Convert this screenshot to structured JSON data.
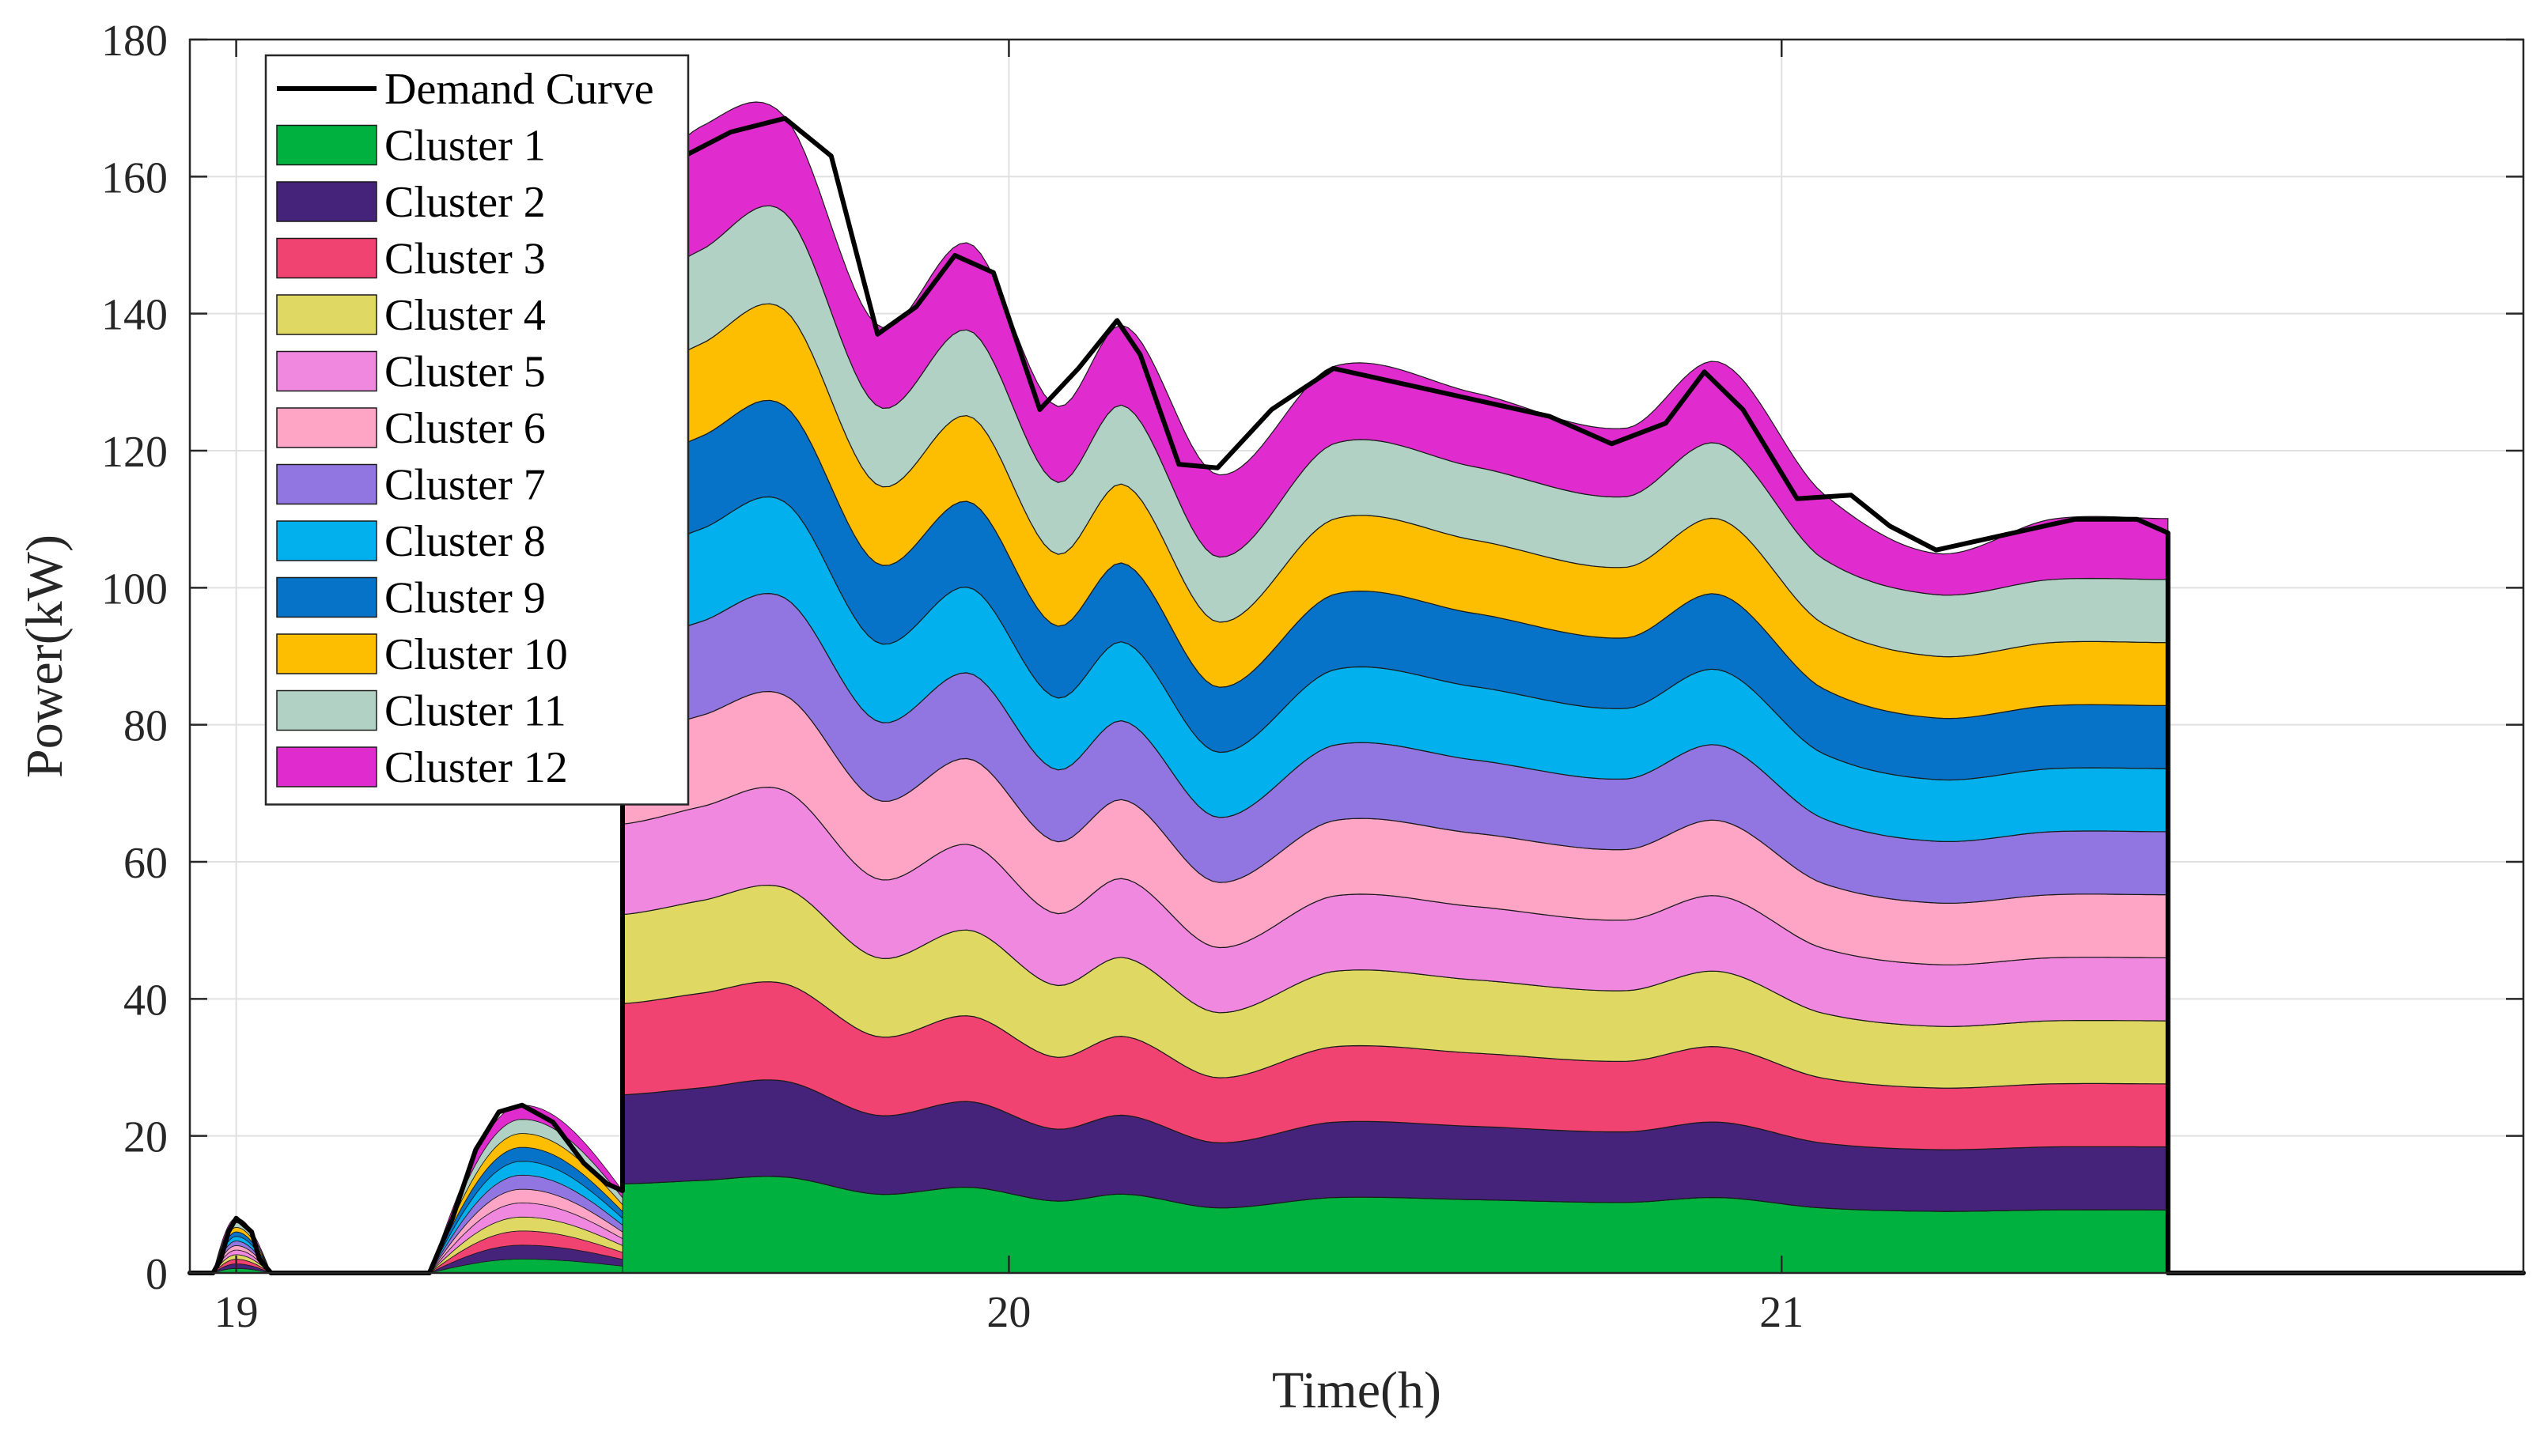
{
  "chart_data": {
    "type": "area",
    "stacked": true,
    "xlabel": "Time(h)",
    "ylabel": "Power(kW)",
    "xlim": [
      18.94,
      21.96
    ],
    "ylim": [
      0,
      180
    ],
    "xticks": [
      19,
      20,
      21
    ],
    "yticks": [
      0,
      20,
      40,
      60,
      80,
      100,
      120,
      140,
      160,
      180
    ],
    "grid": true,
    "legend_position": "top-left",
    "demand_curve": {
      "name": "Demand Curve",
      "color": "#000000",
      "points": [
        [
          18.94,
          0
        ],
        [
          18.97,
          0
        ],
        [
          18.98,
          2
        ],
        [
          18.99,
          6
        ],
        [
          19.0,
          8
        ],
        [
          19.02,
          6
        ],
        [
          19.03,
          2
        ],
        [
          19.045,
          0
        ],
        [
          19.25,
          0
        ],
        [
          19.28,
          8
        ],
        [
          19.31,
          18
        ],
        [
          19.34,
          23.5
        ],
        [
          19.37,
          24.5
        ],
        [
          19.41,
          22
        ],
        [
          19.45,
          16
        ],
        [
          19.48,
          13
        ],
        [
          19.5,
          12
        ],
        [
          19.5,
          157
        ],
        [
          19.52,
          158
        ],
        [
          19.58,
          163
        ],
        [
          19.64,
          166.5
        ],
        [
          19.71,
          168.5
        ],
        [
          19.77,
          163
        ],
        [
          19.83,
          137
        ],
        [
          19.88,
          141
        ],
        [
          19.93,
          148.5
        ],
        [
          19.98,
          146
        ],
        [
          20.04,
          126
        ],
        [
          20.09,
          132
        ],
        [
          20.14,
          139
        ],
        [
          20.17,
          134
        ],
        [
          20.22,
          118
        ],
        [
          20.27,
          117.5
        ],
        [
          20.34,
          126
        ],
        [
          20.42,
          132
        ],
        [
          20.5,
          130
        ],
        [
          20.6,
          127.5
        ],
        [
          20.7,
          125
        ],
        [
          20.78,
          121
        ],
        [
          20.85,
          124
        ],
        [
          20.9,
          131.5
        ],
        [
          20.95,
          126
        ],
        [
          21.02,
          113
        ],
        [
          21.09,
          113.5
        ],
        [
          21.14,
          109
        ],
        [
          21.2,
          105.5
        ],
        [
          21.3,
          108
        ],
        [
          21.38,
          110
        ],
        [
          21.46,
          110
        ],
        [
          21.5,
          108
        ],
        [
          21.5,
          0
        ],
        [
          21.96,
          0
        ]
      ]
    },
    "x": [
      19.5,
      19.6,
      19.71,
      19.83,
      19.95,
      20.06,
      20.15,
      20.27,
      20.42,
      20.6,
      20.8,
      20.92,
      21.05,
      21.2,
      21.35,
      21.5
    ],
    "series": [
      {
        "name": "Cluster 1",
        "color": "#00b140",
        "values": [
          13,
          13.5,
          14,
          11.5,
          12.5,
          10.5,
          11.5,
          9.5,
          11,
          10.7,
          10.3,
          11,
          9.5,
          9,
          9.2,
          9.2
        ]
      },
      {
        "name": "Cluster 2",
        "color": "#46237a",
        "values": [
          13,
          13.5,
          14,
          11.5,
          12.5,
          10.5,
          11.5,
          9.5,
          11,
          10.7,
          10.3,
          11,
          9.5,
          9,
          9.2,
          9.2
        ]
      },
      {
        "name": "Cluster 3",
        "color": "#f14371",
        "values": [
          13.3,
          13.8,
          14.2,
          11.5,
          12.5,
          10.5,
          11.5,
          9.5,
          11,
          10.7,
          10.3,
          11,
          9.5,
          9,
          9.2,
          9.2
        ]
      },
      {
        "name": "Cluster 4",
        "color": "#dfd964",
        "values": [
          13,
          13.5,
          14,
          11.5,
          12.5,
          10.5,
          11.5,
          9.5,
          11,
          10.7,
          10.3,
          11,
          9.5,
          9,
          9.2,
          9.2
        ]
      },
      {
        "name": "Cluster 5",
        "color": "#f088e0",
        "values": [
          13.2,
          13.7,
          14.2,
          11.5,
          12.5,
          10.5,
          11.5,
          9.5,
          11,
          10.7,
          10.3,
          11,
          9.5,
          9,
          9.2,
          9.2
        ]
      },
      {
        "name": "Cluster 6",
        "color": "#fea4c4",
        "values": [
          12.8,
          13.3,
          13.9,
          11.5,
          12.5,
          10.5,
          11.5,
          9.5,
          11,
          10.7,
          10.3,
          11,
          9.5,
          9,
          9.2,
          9.2
        ]
      },
      {
        "name": "Cluster 7",
        "color": "#9175e1",
        "values": [
          13.2,
          13.7,
          14.2,
          11.5,
          12.5,
          10.5,
          11.5,
          9.5,
          11,
          10.7,
          10.3,
          11,
          9.5,
          9,
          9.2,
          9.2
        ]
      },
      {
        "name": "Cluster 8",
        "color": "#01b0ed",
        "values": [
          13,
          13.5,
          14,
          11.5,
          12.5,
          10.5,
          11.5,
          9.5,
          11,
          10.7,
          10.3,
          11,
          9.5,
          9,
          9.2,
          9.2
        ]
      },
      {
        "name": "Cluster 9",
        "color": "#0673c9",
        "values": [
          13,
          13.5,
          14,
          11.5,
          12.5,
          10.5,
          11.5,
          9.5,
          11,
          10.7,
          10.3,
          11,
          9.5,
          9,
          9.2,
          9.2
        ]
      },
      {
        "name": "Cluster 10",
        "color": "#fdbd01",
        "values": [
          13,
          13.5,
          14,
          11.5,
          12.5,
          10.5,
          11.5,
          9.5,
          11,
          10.7,
          10.3,
          11,
          9.5,
          9,
          9.2,
          9.2
        ]
      },
      {
        "name": "Cluster 11",
        "color": "#b2d1c5",
        "values": [
          13.2,
          13.7,
          14.2,
          11.5,
          12.5,
          10.5,
          11.5,
          9.5,
          11,
          10.7,
          10.3,
          11,
          9.5,
          9,
          9.2,
          9.2
        ]
      },
      {
        "name": "Cluster 12",
        "color": "#e02bce",
        "values": [
          13.3,
          18,
          14,
          11.8,
          12.7,
          11.1,
          11.7,
          12,
          11.3,
          10.8,
          10,
          11.9,
          9.6,
          6,
          8.8,
          8.9
        ]
      }
    ],
    "early_bumps": [
      {
        "start": 18.97,
        "peak": 19.0,
        "end": 19.045,
        "peak_total": 8
      },
      {
        "start": 19.25,
        "peak": 19.37,
        "end": 19.5,
        "peak_total": 24.5,
        "end_total": 12
      }
    ]
  }
}
